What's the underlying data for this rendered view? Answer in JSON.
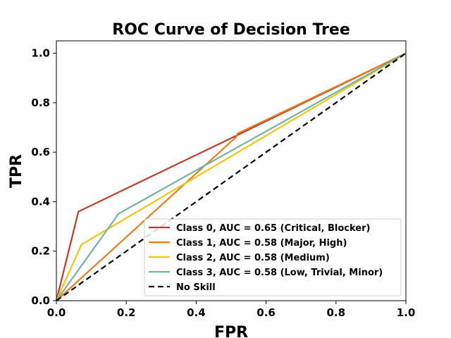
{
  "chart_data": {
    "type": "line",
    "title": "ROC Curve of Decision Tree",
    "xlabel": "FPR",
    "ylabel": "TPR",
    "xlim": [
      0,
      1
    ],
    "ylim": [
      0,
      1.05
    ],
    "xticks": [
      "0.0",
      "0.2",
      "0.4",
      "0.6",
      "0.8",
      "1.0"
    ],
    "yticks": [
      "0.0",
      "0.2",
      "0.4",
      "0.6",
      "0.8",
      "1.0"
    ],
    "grid": false,
    "legend_position": "lower-right",
    "series": [
      {
        "name": "Class 0, AUC = 0.65 (Critical, Blocker)",
        "color": "#c0392b",
        "dash": "solid",
        "points": [
          [
            0,
            0
          ],
          [
            0.063,
            0.36
          ],
          [
            0.515,
            0.667
          ],
          [
            1,
            1
          ]
        ]
      },
      {
        "name": "Class 1, AUC = 0.58 (Major, High)",
        "color": "#e67e22",
        "dash": "solid",
        "points": [
          [
            0,
            0
          ],
          [
            0.515,
            0.662
          ],
          [
            0.518,
            0.675
          ],
          [
            1,
            1
          ]
        ]
      },
      {
        "name": "Class 2, AUC = 0.58 (Medium)",
        "color": "#f1c40f",
        "dash": "solid",
        "points": [
          [
            0,
            0
          ],
          [
            0.072,
            0.227
          ],
          [
            1,
            1
          ]
        ]
      },
      {
        "name": "Class 3, AUC = 0.58 (Low, Trivial, Minor)",
        "color": "#76b39d",
        "dash": "solid",
        "points": [
          [
            0,
            0
          ],
          [
            0.17,
            0.335
          ],
          [
            0.176,
            0.35
          ],
          [
            1,
            1
          ]
        ]
      },
      {
        "name": "No Skill",
        "color": "#000000",
        "dash": "dashed",
        "points": [
          [
            0,
            0
          ],
          [
            1,
            1
          ]
        ]
      }
    ]
  }
}
